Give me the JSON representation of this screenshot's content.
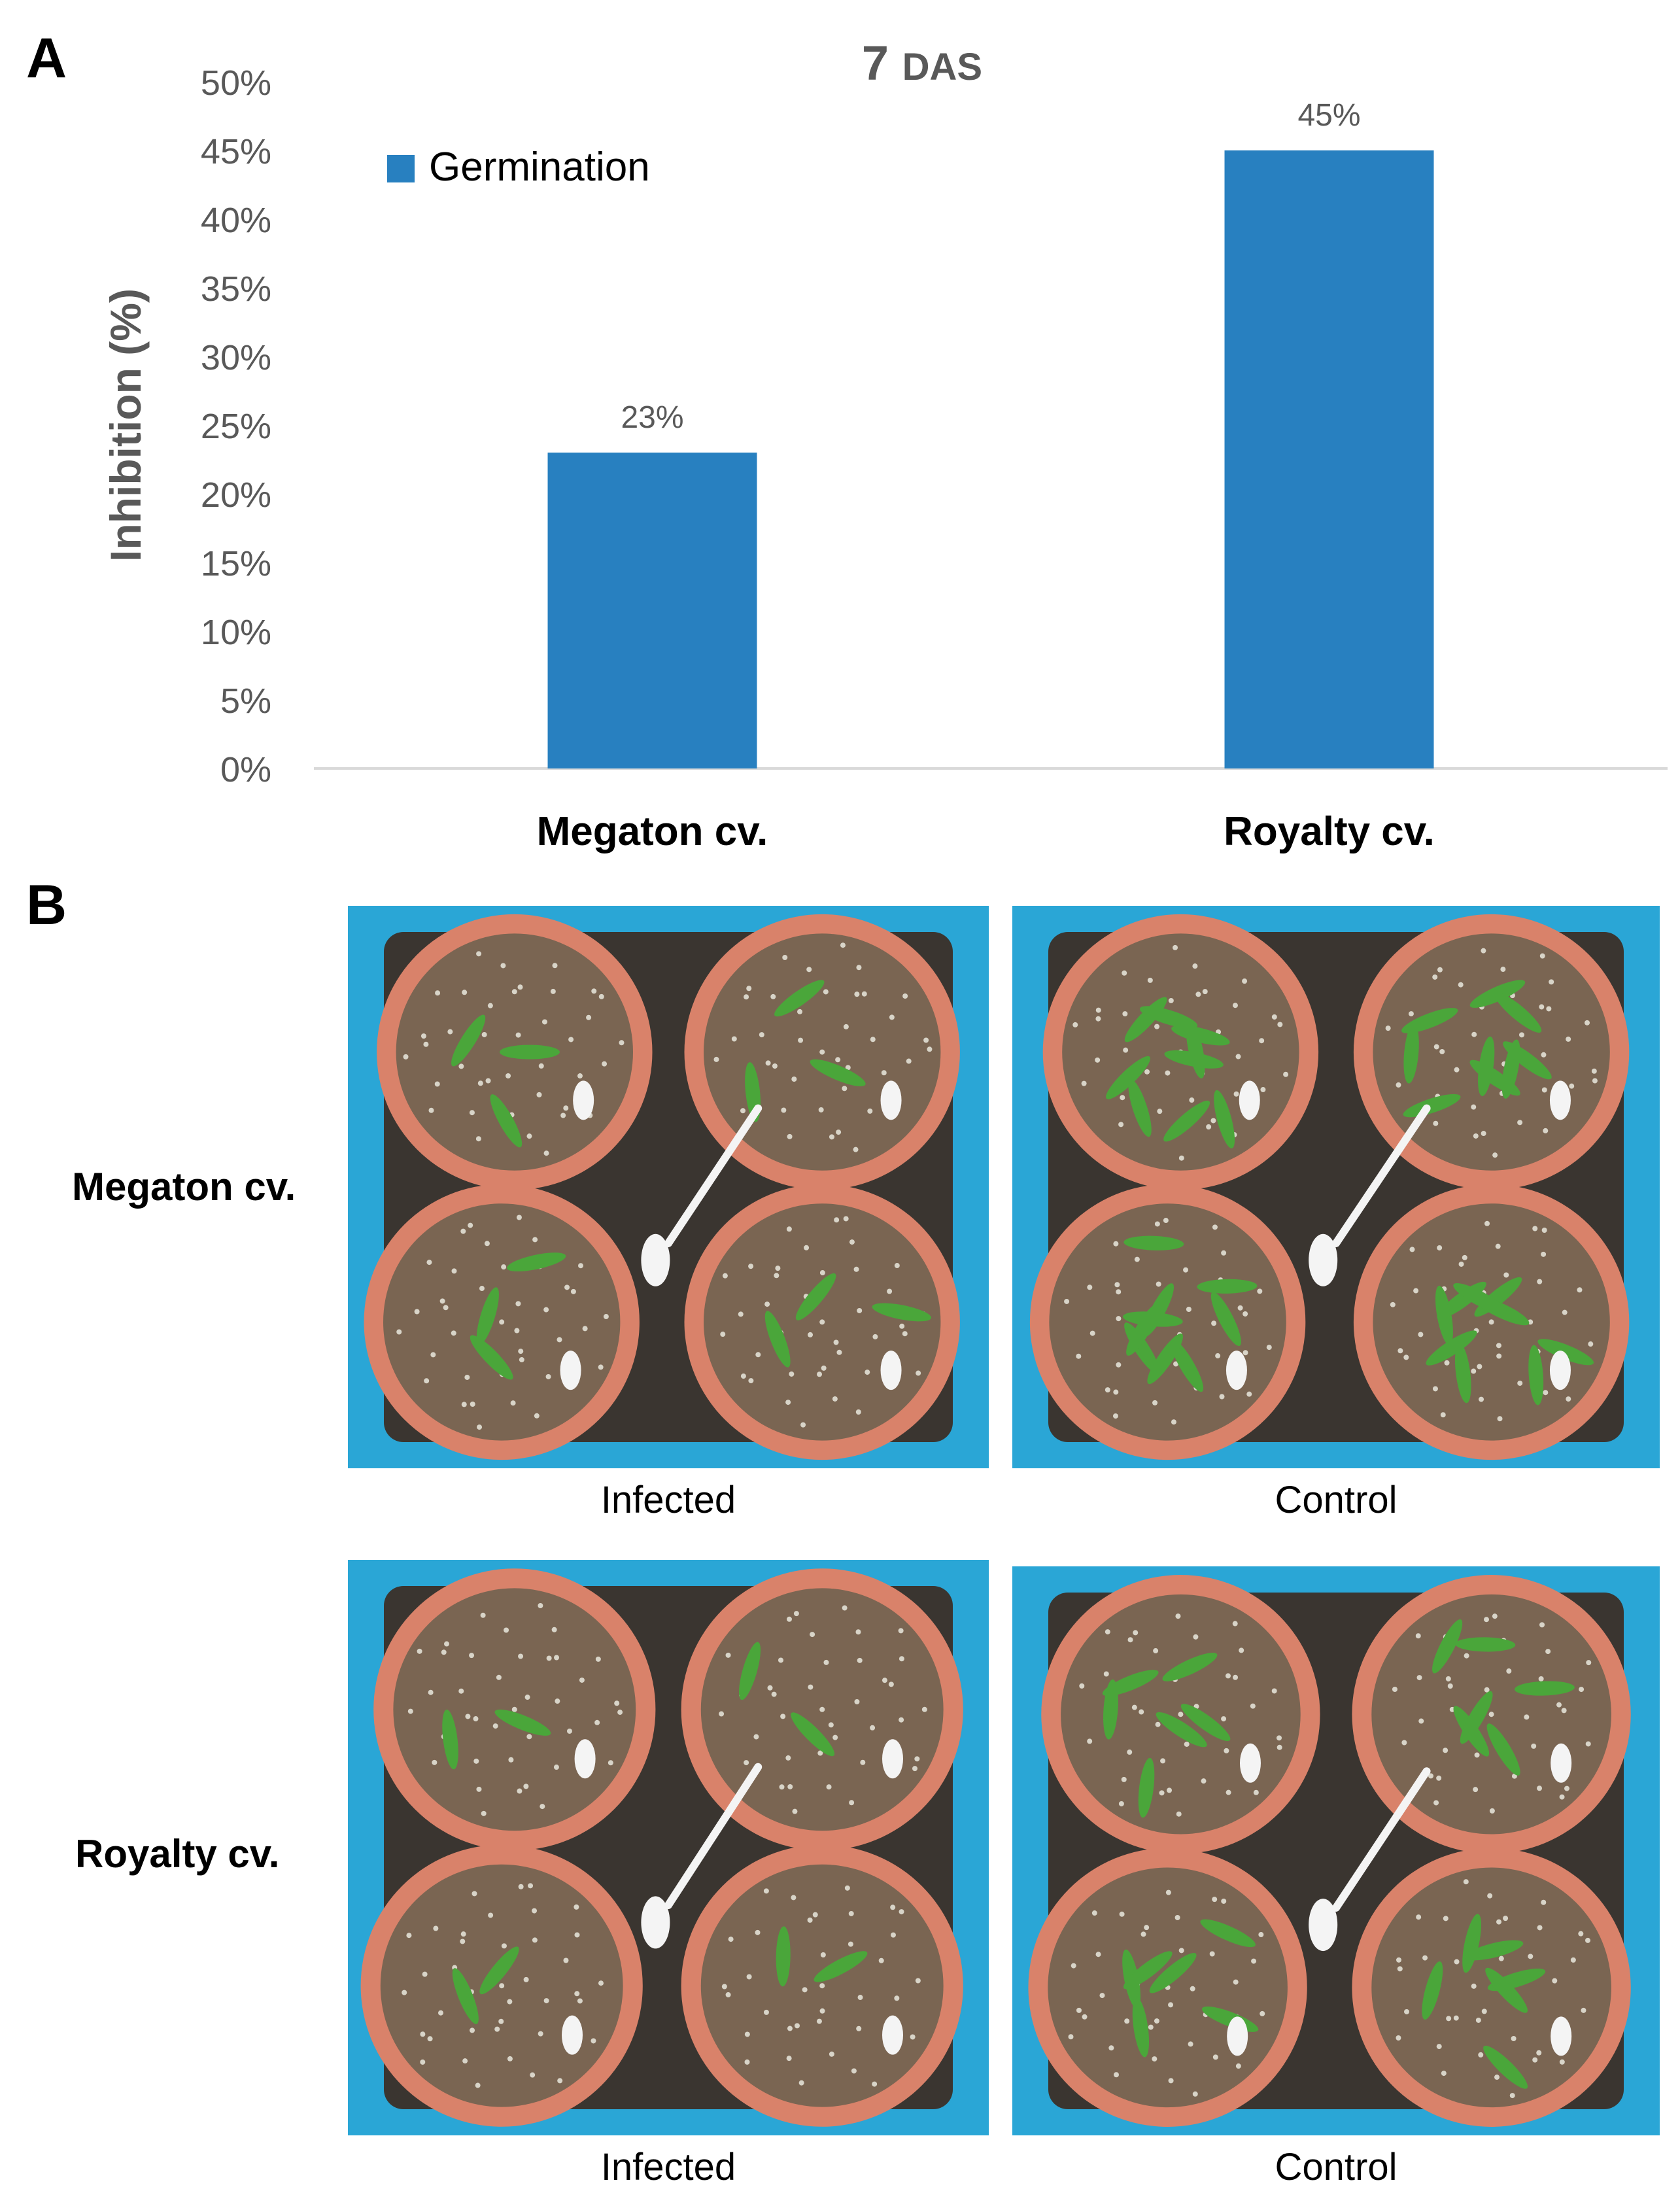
{
  "panels": {
    "a_letter": "A",
    "b_letter": "B"
  },
  "chart_data": {
    "type": "bar",
    "title_main": "7",
    "title_suffix": "DAS",
    "ylabel": "Inhibition (%)",
    "xlabel": "",
    "categories": [
      "Megaton cv.",
      "Royalty cv."
    ],
    "series": [
      {
        "name": "Germination",
        "values": [
          23,
          45
        ],
        "labels": [
          "23%",
          "45%"
        ]
      }
    ],
    "ylim": [
      0,
      50
    ],
    "yticks": [
      0,
      5,
      10,
      15,
      20,
      25,
      30,
      35,
      40,
      45,
      50
    ],
    "ytick_labels": [
      "0%",
      "5%",
      "10%",
      "15%",
      "20%",
      "25%",
      "30%",
      "35%",
      "40%",
      "45%",
      "50%"
    ],
    "grid": false,
    "legend_position": "top-left",
    "colors": {
      "bar": "#2880c0",
      "axis_text": "#595959",
      "baseline": "#d9d9d9"
    }
  },
  "photos": {
    "rows": [
      "Megaton cv.",
      "Royalty cv."
    ],
    "captions": {
      "megaton_infected": "Infected",
      "megaton_control": "Control",
      "royalty_infected": "Infected",
      "royalty_control": "Control"
    },
    "colors": {
      "crate": "#2aa6d6",
      "tray": "#3a3530",
      "pot_rim": "#d9826a",
      "soil": "#7a6552",
      "seedling": "#4aa63a"
    }
  }
}
